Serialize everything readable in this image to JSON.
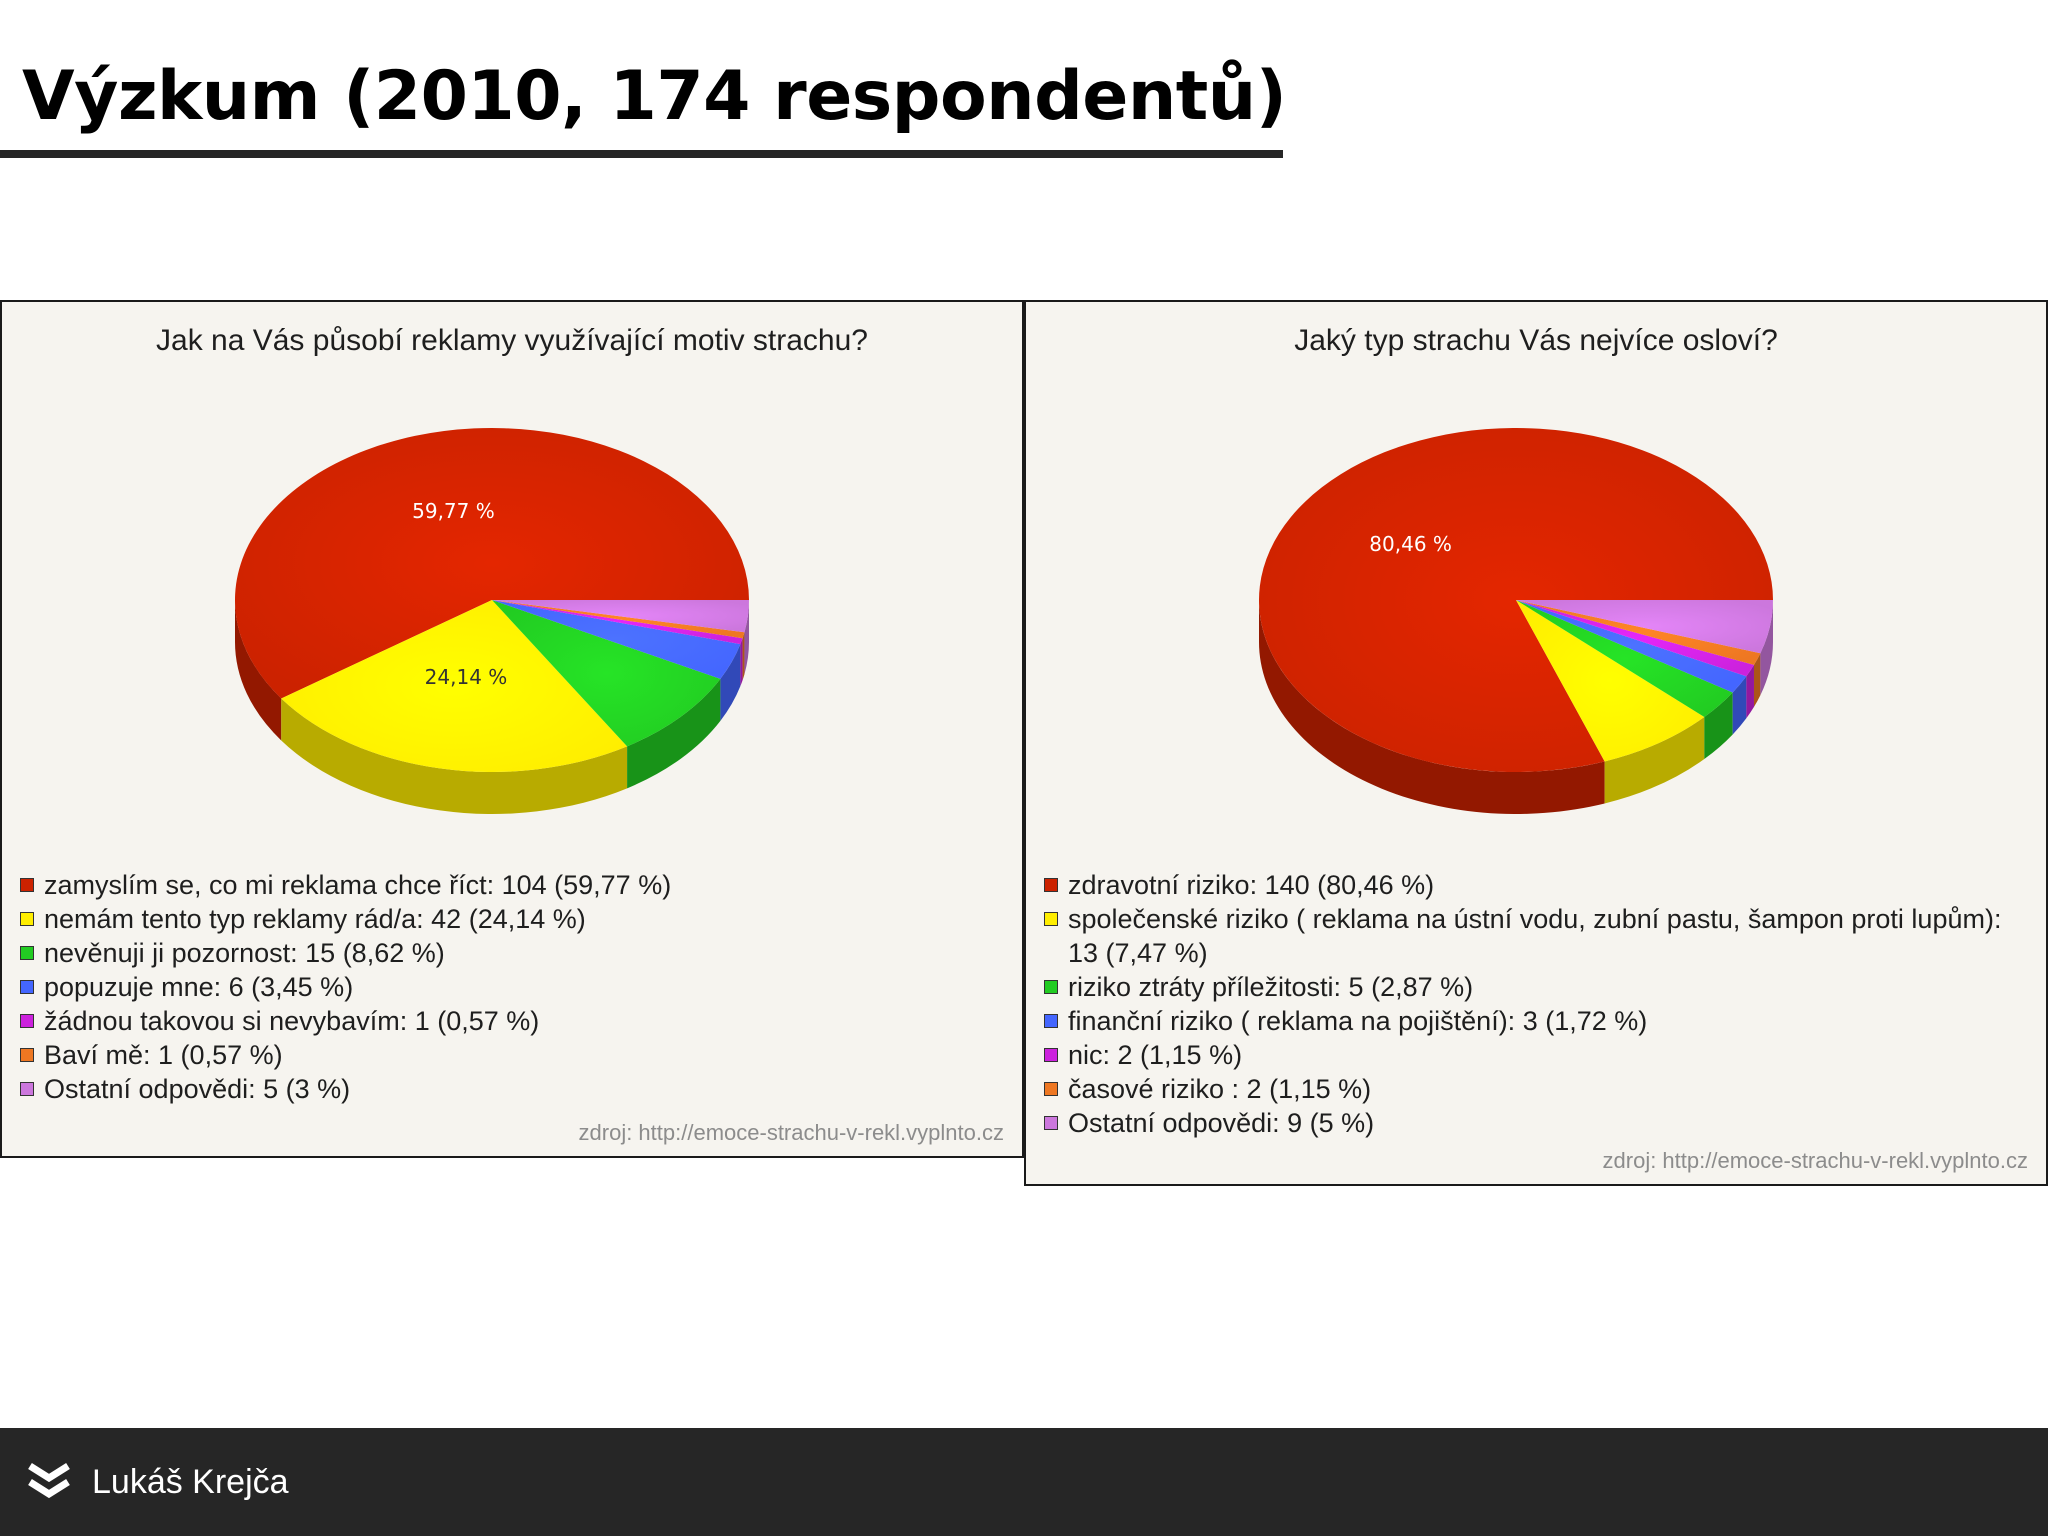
{
  "slide": {
    "title": "Výzkum (2010, 174 respondentů)",
    "footer_name": "Lukáš Krejča"
  },
  "chart_data": [
    {
      "type": "pie",
      "title": "Jak na Vás působí reklamy využívající motiv strachu?",
      "unit": "%",
      "slices": [
        {
          "label": "zamyslím se, co mi reklama chce říct",
          "count": 104,
          "value": 59.77,
          "color": "#cc2200",
          "legend": "zamyslím se, co mi reklama chce říct: 104 (59,77 %)"
        },
        {
          "label": "nemám tento typ reklamy rád/a",
          "count": 42,
          "value": 24.14,
          "color": "#ffee00",
          "legend": "nemám tento typ reklamy rád/a: 42 (24,14 %)"
        },
        {
          "label": "nevěnuji ji pozornost",
          "count": 15,
          "value": 8.62,
          "color": "#22cc22",
          "legend": "nevěnuji ji pozornost: 15 (8,62 %)"
        },
        {
          "label": "popuzuje mne",
          "count": 6,
          "value": 3.45,
          "color": "#4466ff",
          "legend": "popuzuje mne: 6 (3,45 %)"
        },
        {
          "label": "žádnou takovou si nevybavím",
          "count": 1,
          "value": 0.57,
          "color": "#cc22dd",
          "legend": "žádnou takovou si nevybavím: 1 (0,57 %)"
        },
        {
          "label": "Baví mě",
          "count": 1,
          "value": 0.57,
          "color": "#ee7722",
          "legend": "Baví mě: 1 (0,57 %)"
        },
        {
          "label": "Ostatní odpovědi",
          "count": 5,
          "value": 3,
          "color": "#cc77dd",
          "legend": "Ostatní odpovědi: 5 (3 %)"
        }
      ],
      "data_labels": [
        "59,77 %",
        "24,14 %"
      ],
      "source": "zdroj: http://emoce-strachu-v-rekl.vyplnto.cz"
    },
    {
      "type": "pie",
      "title": "Jaký typ strachu Vás nejvíce osloví?",
      "unit": "%",
      "slices": [
        {
          "label": "zdravotní riziko",
          "count": 140,
          "value": 80.46,
          "color": "#cc2200",
          "legend": "zdravotní riziko: 140 (80,46 %)"
        },
        {
          "label": "společenské riziko ( reklama na ústní vodu, zubní pastu, šampon proti lupům)",
          "count": 13,
          "value": 7.47,
          "color": "#ffee00",
          "legend": "společenské riziko ( reklama na ústní vodu, zubní pastu, šampon proti lupům): 13 (7,47 %)"
        },
        {
          "label": "riziko ztráty příležitosti",
          "count": 5,
          "value": 2.87,
          "color": "#22cc22",
          "legend": "riziko ztráty příležitosti: 5 (2,87 %)"
        },
        {
          "label": "finanční riziko ( reklama na pojištění)",
          "count": 3,
          "value": 1.72,
          "color": "#4466ff",
          "legend": "finanční riziko ( reklama na pojištění): 3 (1,72 %)"
        },
        {
          "label": "nic",
          "count": 2,
          "value": 1.15,
          "color": "#cc22dd",
          "legend": "nic: 2 (1,15 %)"
        },
        {
          "label": "časové riziko ",
          "count": 2,
          "value": 1.15,
          "color": "#ee7722",
          "legend": "časové riziko : 2 (1,15 %)"
        },
        {
          "label": "Ostatní odpovědi",
          "count": 9,
          "value": 5,
          "color": "#cc77dd",
          "legend": "Ostatní odpovědi: 9 (5 %)"
        }
      ],
      "data_labels": [
        "80,46 %"
      ],
      "source": "zdroj: http://emoce-strachu-v-rekl.vyplnto.cz"
    }
  ]
}
